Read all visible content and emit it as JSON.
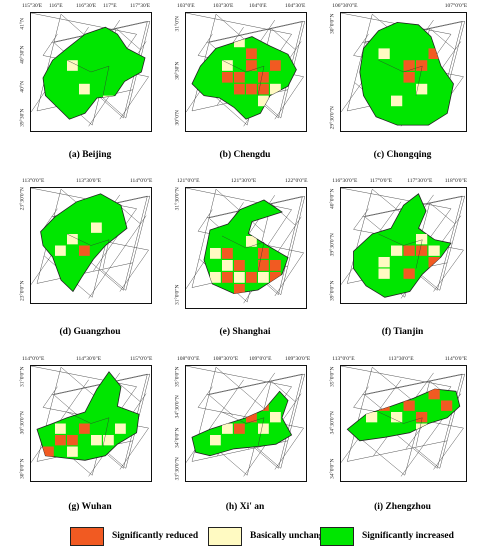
{
  "colors": {
    "reduced": "#f15a22",
    "unchanged": "#fffac2",
    "increased": "#00e600",
    "boundary": "#555555"
  },
  "legend": [
    {
      "key": "reduced",
      "label": "Significantly reduced"
    },
    {
      "key": "unchanged",
      "label": "Basically unchanged"
    },
    {
      "key": "increased",
      "label": "Significantly increased"
    }
  ],
  "panels": [
    {
      "id": "beijing",
      "caption": "(a) Beijing",
      "lon_ticks": [
        "115°30'E",
        "116°E",
        "116°30'E",
        "117°E",
        "117°30'E"
      ],
      "lat_ticks": [
        "41°N",
        "40°30'N",
        "40°N",
        "39°30'N"
      ]
    },
    {
      "id": "chengdu",
      "caption": "(b) Chengdu",
      "lon_ticks": [
        "103°0'E",
        "103°30'E",
        "104°0'E",
        "104°30'E"
      ],
      "lat_ticks": [
        "31°0'N",
        "30°30'N",
        "30°0'N"
      ]
    },
    {
      "id": "chongqing",
      "caption": "(c) Chongqing",
      "lon_ticks": [
        "106°30'0\"E",
        "107°0'0\"E"
      ],
      "lat_ticks": [
        "30°0'0\"N",
        "29°30'0\"N"
      ]
    },
    {
      "id": "guangzhou",
      "caption": "(d) Guangzhou",
      "lon_ticks": [
        "113°0'0\"E",
        "113°30'0\"E",
        "114°0'0\"E"
      ],
      "lat_ticks": [
        "23°30'0\"N",
        "23°0'0\"N"
      ]
    },
    {
      "id": "shanghai",
      "caption": "(e) Shanghai",
      "lon_ticks": [
        "121°0'0\"E",
        "121°30'0\"E",
        "122°0'0\"E"
      ],
      "lat_ticks": [
        "31°30'0\"N",
        "31°0'0\"N"
      ]
    },
    {
      "id": "tianjin",
      "caption": "(f) Tianjin",
      "lon_ticks": [
        "116°30'0\"E",
        "117°0'0\"E",
        "117°30'0\"E",
        "118°0'0\"E"
      ],
      "lat_ticks": [
        "40°0'0\"N",
        "39°30'0\"N",
        "39°0'0\"N"
      ]
    },
    {
      "id": "wuhan",
      "caption": "(g) Wuhan",
      "lon_ticks": [
        "114°0'0\"E",
        "114°30'0\"E",
        "115°0'0\"E"
      ],
      "lat_ticks": [
        "31°0'0\"N",
        "30°30'0\"N",
        "30°0'0\"N"
      ]
    },
    {
      "id": "xian",
      "caption": "(h) Xi' an",
      "lon_ticks": [
        "108°0'0\"E",
        "108°30'0\"E",
        "109°0'0\"E",
        "109°30'0\"E"
      ],
      "lat_ticks": [
        "35°0'0\"N",
        "34°30'0\"N",
        "34°0'0\"N",
        "33°30'0\"N"
      ]
    },
    {
      "id": "zhengzhou",
      "caption": "(i) Zhengzhou",
      "lon_ticks": [
        "113°0'0\"E",
        "113°30'0\"E",
        "114°0'0\"E"
      ],
      "lat_ticks": [
        "35°0'0\"N",
        "34°30'0\"N",
        "34°0'0\"N"
      ]
    }
  ]
}
